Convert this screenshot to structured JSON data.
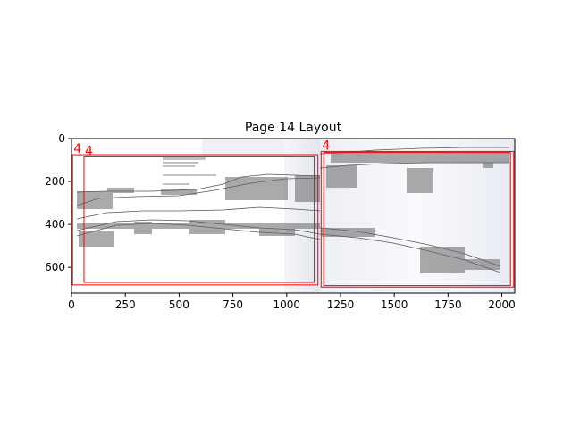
{
  "chart_data": {
    "type": "image-with-boxes",
    "title": "Page 14 Layout",
    "xlabel": "",
    "ylabel": "",
    "xlim": [
      0,
      2060
    ],
    "ylim": [
      720,
      0
    ],
    "xticks": [
      0,
      250,
      500,
      750,
      1000,
      1250,
      1500,
      1750,
      2000
    ],
    "yticks": [
      0,
      200,
      400,
      600
    ],
    "grid": false,
    "image_description": "scanned engineering cross-section drawing",
    "box_color": "#ff0000",
    "boxes": [
      {
        "label": "4",
        "x0": 5,
        "y0": 75,
        "x1": 1145,
        "y1": 682
      },
      {
        "label": "4",
        "x0": 58,
        "y0": 85,
        "x1": 1128,
        "y1": 670
      },
      {
        "label": "4",
        "x0": 1160,
        "y0": 60,
        "x1": 2055,
        "y1": 692
      },
      {
        "label": "",
        "x0": 1172,
        "y0": 65,
        "x1": 2040,
        "y1": 685
      }
    ]
  }
}
